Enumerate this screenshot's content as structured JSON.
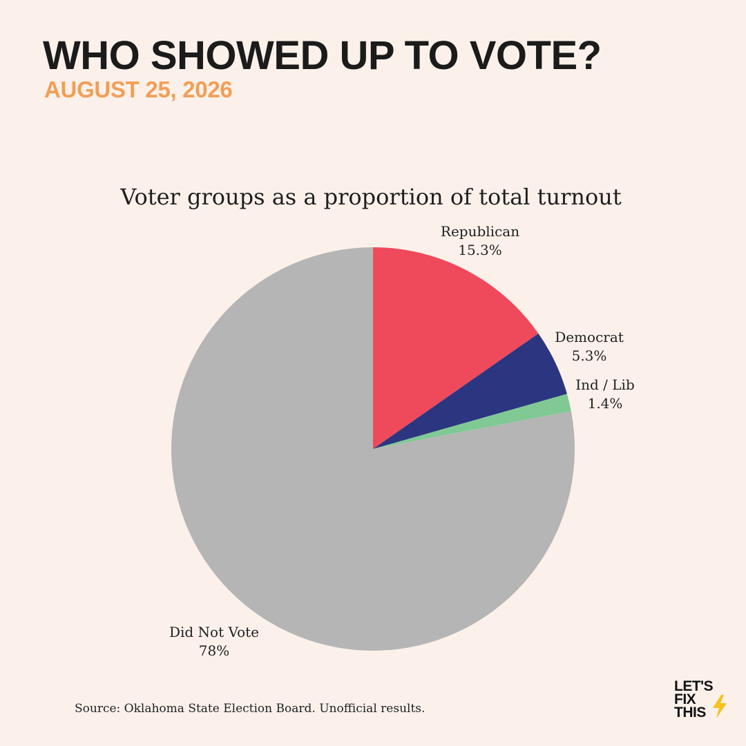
{
  "header": {
    "title": "WHO SHOWED UP TO VOTE?",
    "date": "AUGUST 25, 2026"
  },
  "footer": {
    "source": "Source: Oklahoma State Election Board. Unofficial results."
  },
  "logo": {
    "lines": [
      "LET'S",
      "FIX",
      "THIS"
    ],
    "accent": "#f6c21c"
  },
  "chart_data": {
    "type": "pie",
    "title": "Voter groups as a proportion of total turnout",
    "start_angle": "12 o'clock, clockwise",
    "slices": [
      {
        "name": "Republican",
        "value": 15.3,
        "label": "15.3%",
        "color": "#ee4a5b"
      },
      {
        "name": "Democrat",
        "value": 5.3,
        "label": "5.3%",
        "color": "#2b3580"
      },
      {
        "name": "Ind / Lib",
        "value": 1.4,
        "label": "1.4%",
        "color": "#80c994"
      },
      {
        "name": "Did Not Vote",
        "value": 78,
        "label": "78%",
        "color": "#b5b5b5"
      }
    ]
  }
}
